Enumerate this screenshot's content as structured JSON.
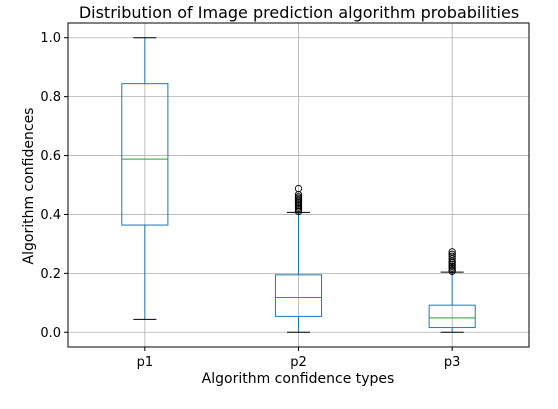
{
  "chart_data": {
    "type": "box",
    "title": "Distribution of Image prediction algorithm probabilities",
    "xlabel": "Algorithm confidence types",
    "ylabel": "Algorithm confidences",
    "ylim": [
      -0.05,
      1.05
    ],
    "y_ticks": [
      0.0,
      0.2,
      0.4,
      0.6,
      0.8,
      1.0
    ],
    "y_tick_labels": [
      "0.0",
      "0.2",
      "0.4",
      "0.6",
      "0.8",
      "1.0"
    ],
    "grid": true,
    "box_color": "#1f77b4",
    "median_color": "#2ca02c",
    "whisker_color": "#1f77b4",
    "cap_color": "#000000",
    "categories": [
      "p1",
      "p2",
      "p3"
    ],
    "boxes": [
      {
        "name": "p1",
        "min": 0.044,
        "q1": 0.364,
        "median": 0.588,
        "q3": 0.844,
        "max": 1.0,
        "outliers": []
      },
      {
        "name": "p2",
        "min": 0.0,
        "q1": 0.054,
        "median": 0.118,
        "q3": 0.195,
        "max": 0.407,
        "outliers": [
          0.41,
          0.415,
          0.42,
          0.425,
          0.43,
          0.435,
          0.44,
          0.445,
          0.45,
          0.455,
          0.46,
          0.467,
          0.488
        ]
      },
      {
        "name": "p3",
        "min": 0.0,
        "q1": 0.016,
        "median": 0.049,
        "q3": 0.092,
        "max": 0.204,
        "outliers": [
          0.207,
          0.212,
          0.218,
          0.224,
          0.23,
          0.236,
          0.242,
          0.25,
          0.258,
          0.265,
          0.273
        ]
      }
    ]
  }
}
